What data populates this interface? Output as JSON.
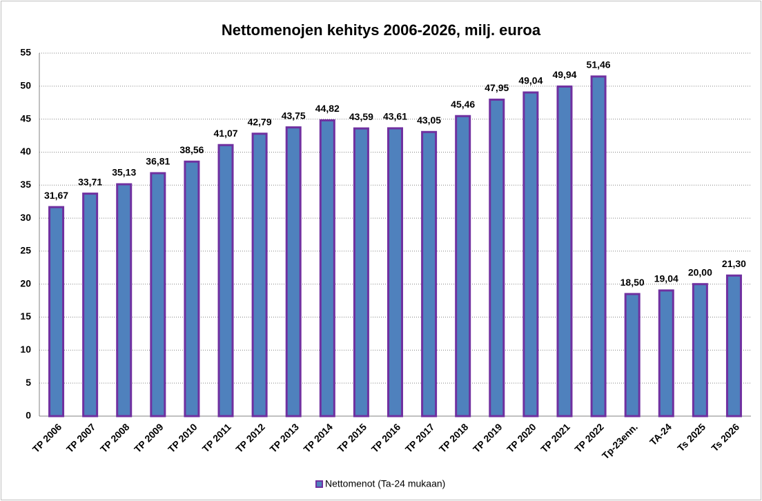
{
  "chart_data": {
    "type": "bar",
    "title": "Nettomenojen kehitys 2006-2026, milj. euroa",
    "categories": [
      "TP 2006",
      "TP 2007",
      "TP 2008",
      "TP 2009",
      "TP 2010",
      "TP 2011",
      "TP 2012",
      "TP 2013",
      "TP 2014",
      "TP 2015",
      "TP 2016",
      "TP 2017",
      "TP 2018",
      "TP 2019",
      "TP 2020",
      "TP 2021",
      "TP 2022",
      "Tp-23enn.",
      "TA-24",
      "Ts 2025",
      "Ts 2026"
    ],
    "series": [
      {
        "name": "Nettomenot (Ta-24 mukaan)",
        "color": "#4f81bd",
        "edgecolor": "#7030a0",
        "values": [
          31.67,
          33.71,
          35.13,
          36.81,
          38.56,
          41.07,
          42.79,
          43.75,
          44.82,
          43.59,
          43.61,
          43.05,
          45.46,
          47.95,
          49.04,
          49.94,
          51.46,
          18.5,
          19.04,
          20.0,
          21.3
        ],
        "value_labels": [
          "31,67",
          "33,71",
          "35,13",
          "36,81",
          "38,56",
          "41,07",
          "42,79",
          "43,75",
          "44,82",
          "43,59",
          "43,61",
          "43,05",
          "45,46",
          "47,95",
          "49,04",
          "49,94",
          "51,46",
          "18,50",
          "19,04",
          "20,00",
          "21,30"
        ]
      }
    ],
    "ylim": [
      0,
      55
    ],
    "yticks": [
      0,
      5,
      10,
      15,
      20,
      25,
      30,
      35,
      40,
      45,
      50,
      55
    ],
    "grid": true,
    "legend": "bottom"
  }
}
